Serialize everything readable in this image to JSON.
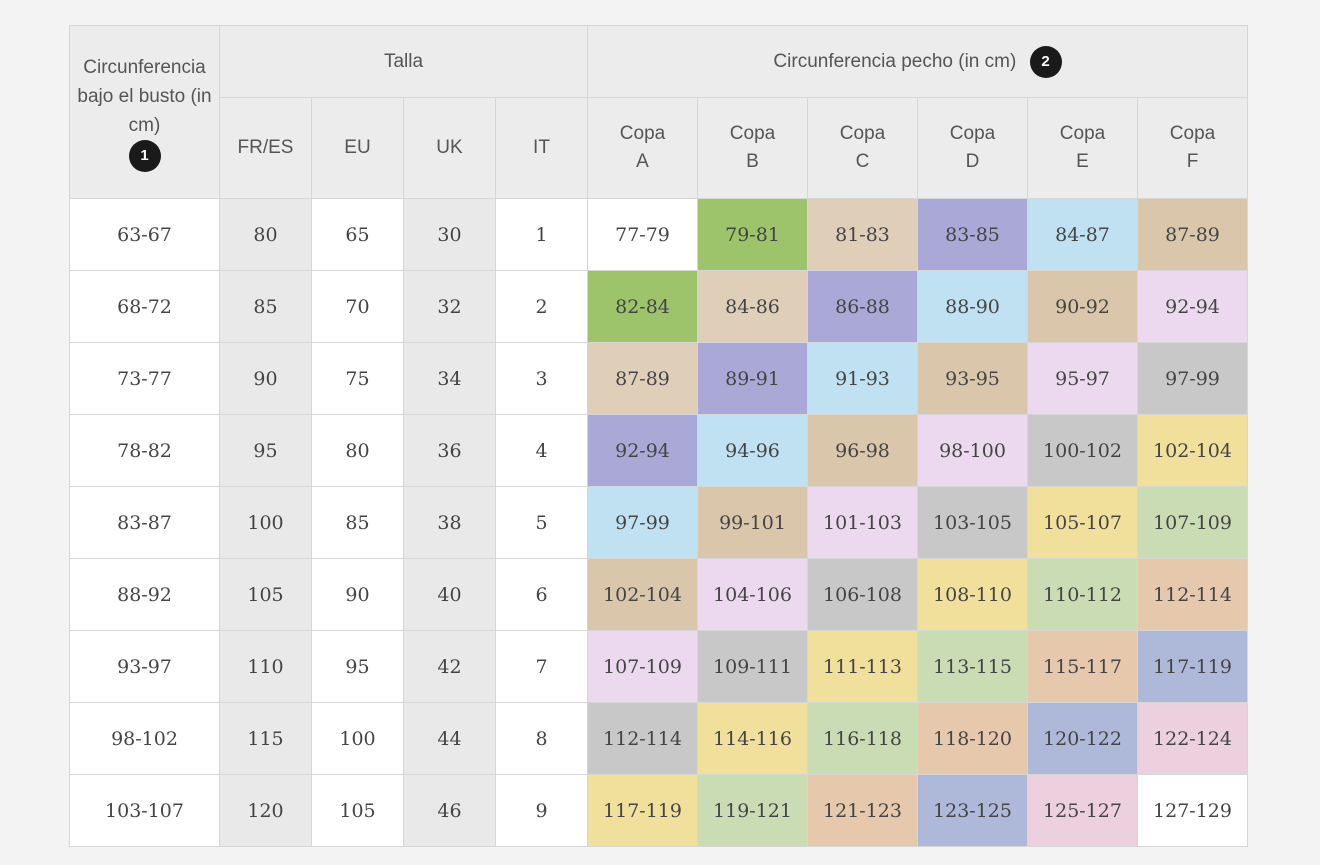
{
  "header": {
    "underbust_label": "Circunferencia bajo el busto (in cm)",
    "underbust_badge": "1",
    "size_label": "Talla",
    "bust_label": "Circunferencia pecho (in cm)",
    "bust_badge": "2",
    "size_columns": [
      "FR/ES",
      "EU",
      "UK",
      "IT"
    ],
    "cups": [
      {
        "word": "Copa",
        "letter": "A"
      },
      {
        "word": "Copa",
        "letter": "B"
      },
      {
        "word": "Copa",
        "letter": "C"
      },
      {
        "word": "Copa",
        "letter": "D"
      },
      {
        "word": "Copa",
        "letter": "E"
      },
      {
        "word": "Copa",
        "letter": "F"
      }
    ]
  },
  "rows": [
    {
      "underbust": "63-67",
      "sizes": [
        "80",
        "65",
        "30",
        "1"
      ],
      "cups": [
        "77-79",
        "79-81",
        "81-83",
        "83-85",
        "84-87",
        "87-89"
      ],
      "colors": [
        "white",
        "green",
        "tan",
        "purple",
        "blue",
        "brown"
      ]
    },
    {
      "underbust": "68-72",
      "sizes": [
        "85",
        "70",
        "32",
        "2"
      ],
      "cups": [
        "82-84",
        "84-86",
        "86-88",
        "88-90",
        "90-92",
        "92-94"
      ],
      "colors": [
        "green",
        "tan",
        "purple",
        "blue",
        "brown",
        "pink"
      ]
    },
    {
      "underbust": "73-77",
      "sizes": [
        "90",
        "75",
        "34",
        "3"
      ],
      "cups": [
        "87-89",
        "89-91",
        "91-93",
        "93-95",
        "95-97",
        "97-99"
      ],
      "colors": [
        "tan",
        "purple",
        "blue",
        "brown",
        "pink",
        "grey"
      ]
    },
    {
      "underbust": "78-82",
      "sizes": [
        "95",
        "80",
        "36",
        "4"
      ],
      "cups": [
        "92-94",
        "94-96",
        "96-98",
        "98-100",
        "100-102",
        "102-104"
      ],
      "colors": [
        "purple",
        "blue",
        "brown",
        "pink",
        "grey",
        "yellow"
      ]
    },
    {
      "underbust": "83-87",
      "sizes": [
        "100",
        "85",
        "38",
        "5"
      ],
      "cups": [
        "97-99",
        "99-101",
        "101-103",
        "103-105",
        "105-107",
        "107-109"
      ],
      "colors": [
        "blue",
        "brown",
        "pink",
        "grey",
        "yellow",
        "sage"
      ]
    },
    {
      "underbust": "88-92",
      "sizes": [
        "105",
        "90",
        "40",
        "6"
      ],
      "cups": [
        "102-104",
        "104-106",
        "106-108",
        "108-110",
        "110-112",
        "112-114"
      ],
      "colors": [
        "brown",
        "pink",
        "grey",
        "yellow",
        "sage",
        "peach"
      ]
    },
    {
      "underbust": "93-97",
      "sizes": [
        "110",
        "95",
        "42",
        "7"
      ],
      "cups": [
        "107-109",
        "109-111",
        "111-113",
        "113-115",
        "115-117",
        "117-119"
      ],
      "colors": [
        "pink",
        "grey",
        "yellow",
        "sage",
        "peach",
        "slate"
      ]
    },
    {
      "underbust": "98-102",
      "sizes": [
        "115",
        "100",
        "44",
        "8"
      ],
      "cups": [
        "112-114",
        "114-116",
        "116-118",
        "118-120",
        "120-122",
        "122-124"
      ],
      "colors": [
        "grey",
        "yellow",
        "sage",
        "peach",
        "slate",
        "rose"
      ]
    },
    {
      "underbust": "103-107",
      "sizes": [
        "120",
        "105",
        "46",
        "9"
      ],
      "cups": [
        "117-119",
        "119-121",
        "121-123",
        "123-125",
        "125-127",
        "127-129"
      ],
      "colors": [
        "yellow",
        "sage",
        "peach",
        "slate",
        "rose",
        "white"
      ]
    }
  ],
  "colors": {
    "white": "#ffffff",
    "green": "#9dc46a",
    "tan": "#e0cfb8",
    "purple": "#aaa8d6",
    "blue": "#bfe1f2",
    "brown": "#d9c6ab",
    "pink": "#ecd8ef",
    "grey": "#c8c8c8",
    "yellow": "#f1e09c",
    "sage": "#c9dcb4",
    "peach": "#e6c8ad",
    "slate": "#aeb8d9",
    "rose": "#edd0dd"
  }
}
